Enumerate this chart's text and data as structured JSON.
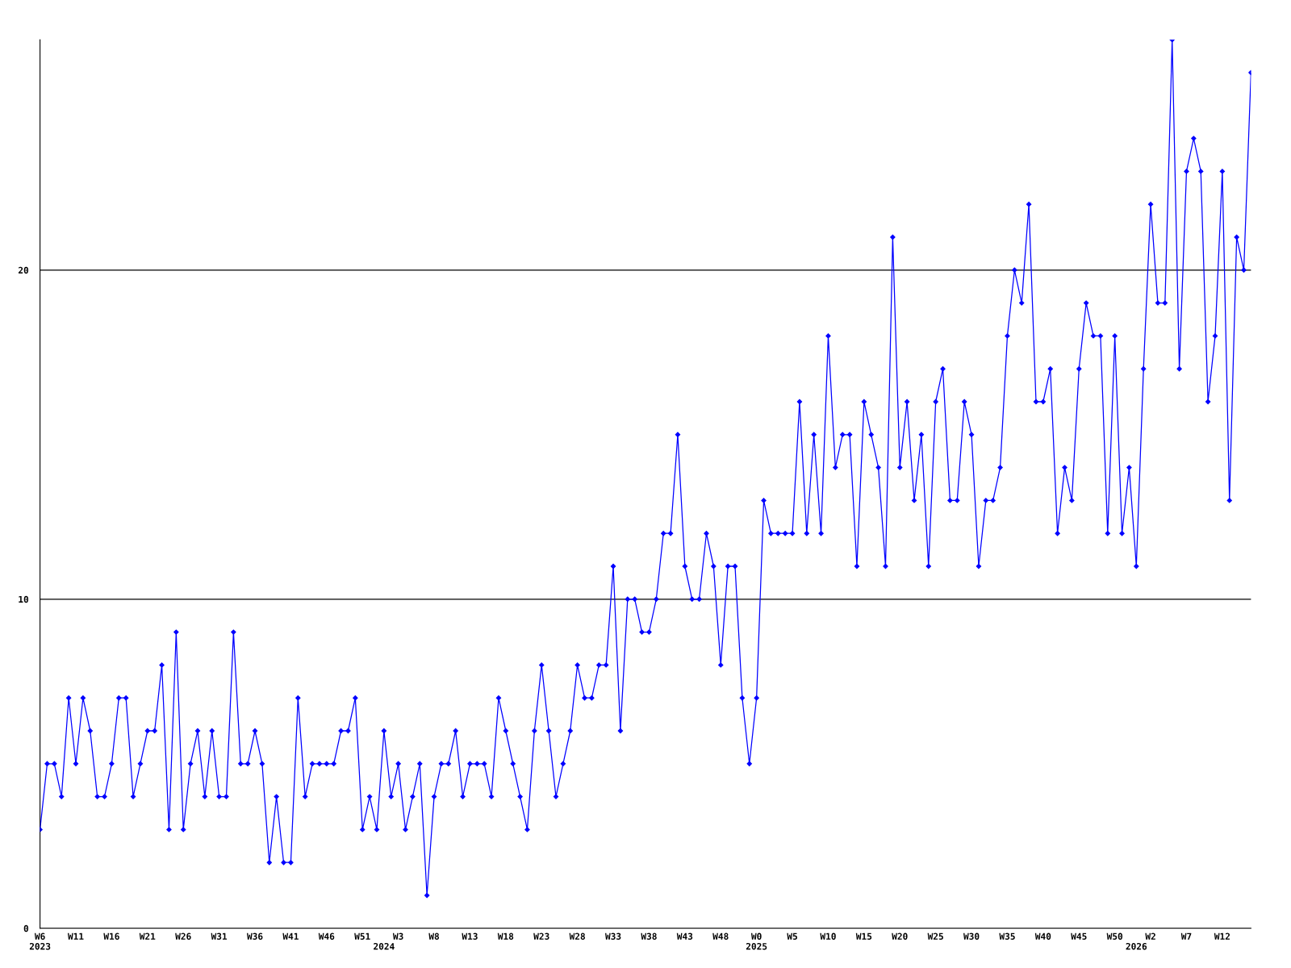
{
  "chart_data": {
    "type": "line",
    "categories": [
      "W6\n2023",
      null,
      null,
      null,
      null,
      "W11",
      null,
      null,
      null,
      null,
      "W16",
      null,
      null,
      null,
      null,
      "W21",
      null,
      null,
      null,
      null,
      "W26",
      null,
      null,
      null,
      null,
      "W31",
      null,
      null,
      null,
      null,
      "W36",
      null,
      null,
      null,
      null,
      "W41",
      null,
      null,
      null,
      null,
      "W46",
      null,
      null,
      null,
      null,
      "W51",
      null,
      null,
      "\n2024",
      null,
      "W3",
      null,
      null,
      null,
      null,
      "W8",
      null,
      null,
      null,
      null,
      "W13",
      null,
      null,
      null,
      null,
      "W18",
      null,
      null,
      null,
      null,
      "W23",
      null,
      null,
      null,
      null,
      "W28",
      null,
      null,
      null,
      null,
      "W33",
      null,
      null,
      null,
      null,
      "W38",
      null,
      null,
      null,
      null,
      "W43",
      null,
      null,
      null,
      null,
      "W48",
      null,
      null,
      null,
      null,
      "W0\n2025",
      null,
      null,
      null,
      null,
      "W5",
      null,
      null,
      null,
      null,
      "W10",
      null,
      null,
      null,
      null,
      "W15",
      null,
      null,
      null,
      null,
      "W20",
      null,
      null,
      null,
      null,
      "W25",
      null,
      null,
      null,
      null,
      "W30",
      null,
      null,
      null,
      null,
      "W35",
      null,
      null,
      null,
      null,
      "W40",
      null,
      null,
      null,
      null,
      "W45",
      null,
      null,
      null,
      null,
      "W50",
      null,
      null,
      "\n2026",
      null,
      "W2",
      null,
      null,
      null,
      null,
      "W7",
      null,
      null,
      null,
      null,
      "W12",
      null,
      null,
      null,
      null
    ],
    "series": [
      {
        "color": "#0000ff",
        "values": [
          3,
          5,
          5,
          4,
          7,
          5,
          7,
          6,
          4,
          4,
          5,
          7,
          7,
          4,
          5,
          6,
          6,
          8,
          3,
          9,
          3,
          5,
          6,
          4,
          6,
          4,
          4,
          9,
          5,
          5,
          6,
          5,
          2,
          4,
          2,
          2,
          7,
          4,
          5,
          5,
          5,
          5,
          6,
          6,
          7,
          3,
          4,
          3,
          6,
          4,
          5,
          3,
          4,
          5,
          1,
          4,
          5,
          5,
          6,
          4,
          5,
          5,
          5,
          4,
          7,
          6,
          5,
          4,
          3,
          6,
          8,
          6,
          4,
          5,
          6,
          8,
          7,
          7,
          8,
          8,
          11,
          6,
          10,
          10,
          9,
          9,
          10,
          12,
          12,
          15,
          11,
          10,
          10,
          12,
          11,
          8,
          11,
          11,
          7,
          5,
          7,
          13,
          12,
          12,
          12,
          12,
          16,
          12,
          15,
          12,
          18,
          14,
          15,
          15,
          11,
          16,
          15,
          14,
          11,
          21,
          14,
          16,
          13,
          15,
          11,
          16,
          17,
          13,
          13,
          16,
          15,
          11,
          13,
          13,
          14,
          18,
          20,
          19,
          22,
          16,
          16,
          17,
          12,
          14,
          13,
          17,
          19,
          18,
          18,
          12,
          18,
          12,
          14,
          11,
          17,
          22,
          19,
          19,
          27,
          17,
          23,
          24,
          23,
          16,
          18,
          23,
          13,
          21,
          20,
          26
        ]
      }
    ],
    "ylim": [
      0,
      27
    ],
    "yticks": [
      0,
      10,
      20
    ],
    "grid": "y",
    "marker": "diamond",
    "line_style": "solid"
  }
}
